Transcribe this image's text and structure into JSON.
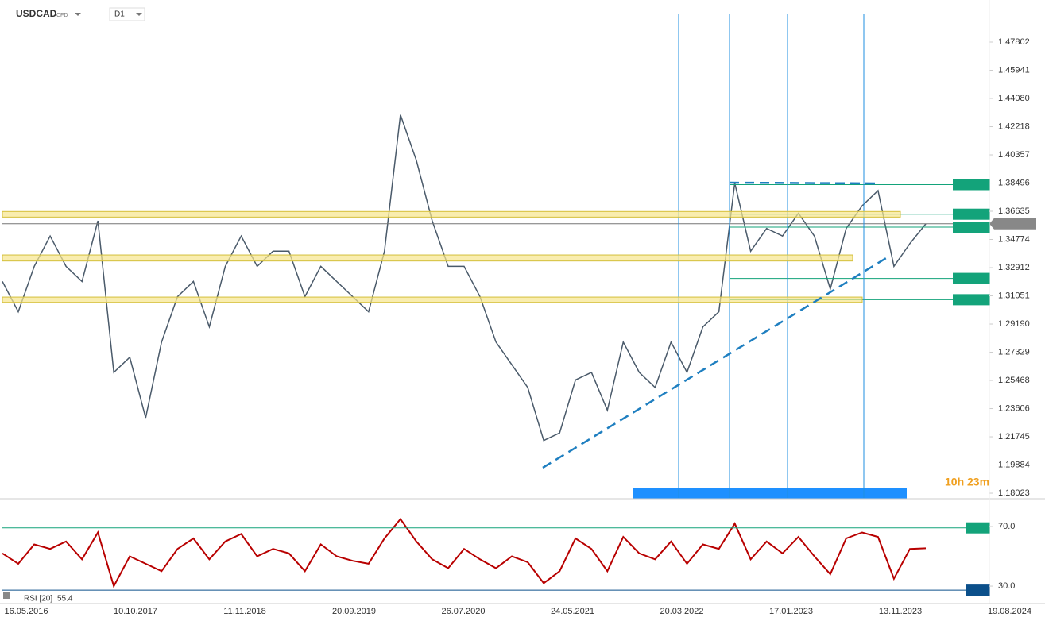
{
  "header": {
    "symbol": "USDCAD",
    "kind": "CFD",
    "timeframe": "D1",
    "countdown": "10h 23m"
  },
  "chart_data": [
    {
      "type": "line",
      "color": "#4a5a6a",
      "values": [
        1.32,
        1.3,
        1.33,
        1.35,
        1.33,
        1.32,
        1.36,
        1.26,
        1.27,
        1.23,
        1.28,
        1.31,
        1.32,
        1.29,
        1.33,
        1.35,
        1.33,
        1.34,
        1.34,
        1.31,
        1.33,
        1.32,
        1.31,
        1.3,
        1.34,
        1.43,
        1.4,
        1.36,
        1.33,
        1.33,
        1.31,
        1.28,
        1.265,
        1.25,
        1.215,
        1.22,
        1.255,
        1.26,
        1.235,
        1.28,
        1.26,
        1.25,
        1.28,
        1.26,
        1.29,
        1.3,
        1.385,
        1.34,
        1.355,
        1.35,
        1.365,
        1.35,
        1.315,
        1.355,
        1.37,
        1.38,
        1.33,
        1.345,
        1.358
      ],
      "x_axis_labels": [
        "16.05.2016",
        "10.10.2017",
        "11.11.2018",
        "20.09.2019",
        "26.07.2020",
        "24.05.2021",
        "20.03.2022",
        "17.01.2023",
        "13.11.2023",
        "19.08.2024"
      ],
      "ylim": [
        1.1771,
        1.4969
      ],
      "yticks": [
        1.18023,
        1.19884,
        1.21745,
        1.23606,
        1.25468,
        1.27329,
        {
          "value": 1.2919,
          "label": "1.29190"
        },
        1.31051,
        1.32912,
        1.34774,
        1.36635,
        1.38496,
        1.40357,
        1.42218,
        {
          "value": 1.4408,
          "label": "1.44080"
        },
        1.45941,
        1.47802
      ],
      "levels": [
        1.38392,
        1.36441,
        1.35585,
        1.32201,
        1.30797
      ],
      "level_color": "#13a37a",
      "current_price": 1.35812,
      "zones": [
        [
          1.3625,
          1.3662
        ],
        [
          1.3335,
          1.3375
        ],
        [
          1.3062,
          1.3097
        ]
      ],
      "markers": [
        "10.05.2022",
        "29.09.2022 12:00",
        ".2023 00:00",
        "05.10.2023 00:00"
      ]
    },
    {
      "type": "line",
      "title": "RSI [20]",
      "color": "#b80000",
      "last_value": 55.4,
      "values": [
        52,
        45,
        58,
        55,
        60,
        48,
        66,
        30,
        50,
        45,
        40,
        55,
        62,
        48,
        60,
        65,
        50,
        55,
        52,
        40,
        58,
        50,
        47,
        45,
        62,
        75,
        60,
        48,
        42,
        55,
        48,
        42,
        50,
        46,
        32,
        40,
        62,
        55,
        40,
        63,
        52,
        48,
        60,
        45,
        58,
        55,
        72,
        48,
        60,
        52,
        63,
        50,
        38,
        62,
        66,
        63,
        35,
        55,
        55.4
      ],
      "ylim": [
        18.3,
        87.6
      ],
      "yticks": [
        {
          "value": 70,
          "label": "70.0"
        },
        {
          "value": 30,
          "label": "30.0"
        }
      ],
      "levels": [
        69.1,
        27.3
      ],
      "level_colors": [
        "#13a37a",
        "#0b4f8a"
      ]
    }
  ]
}
